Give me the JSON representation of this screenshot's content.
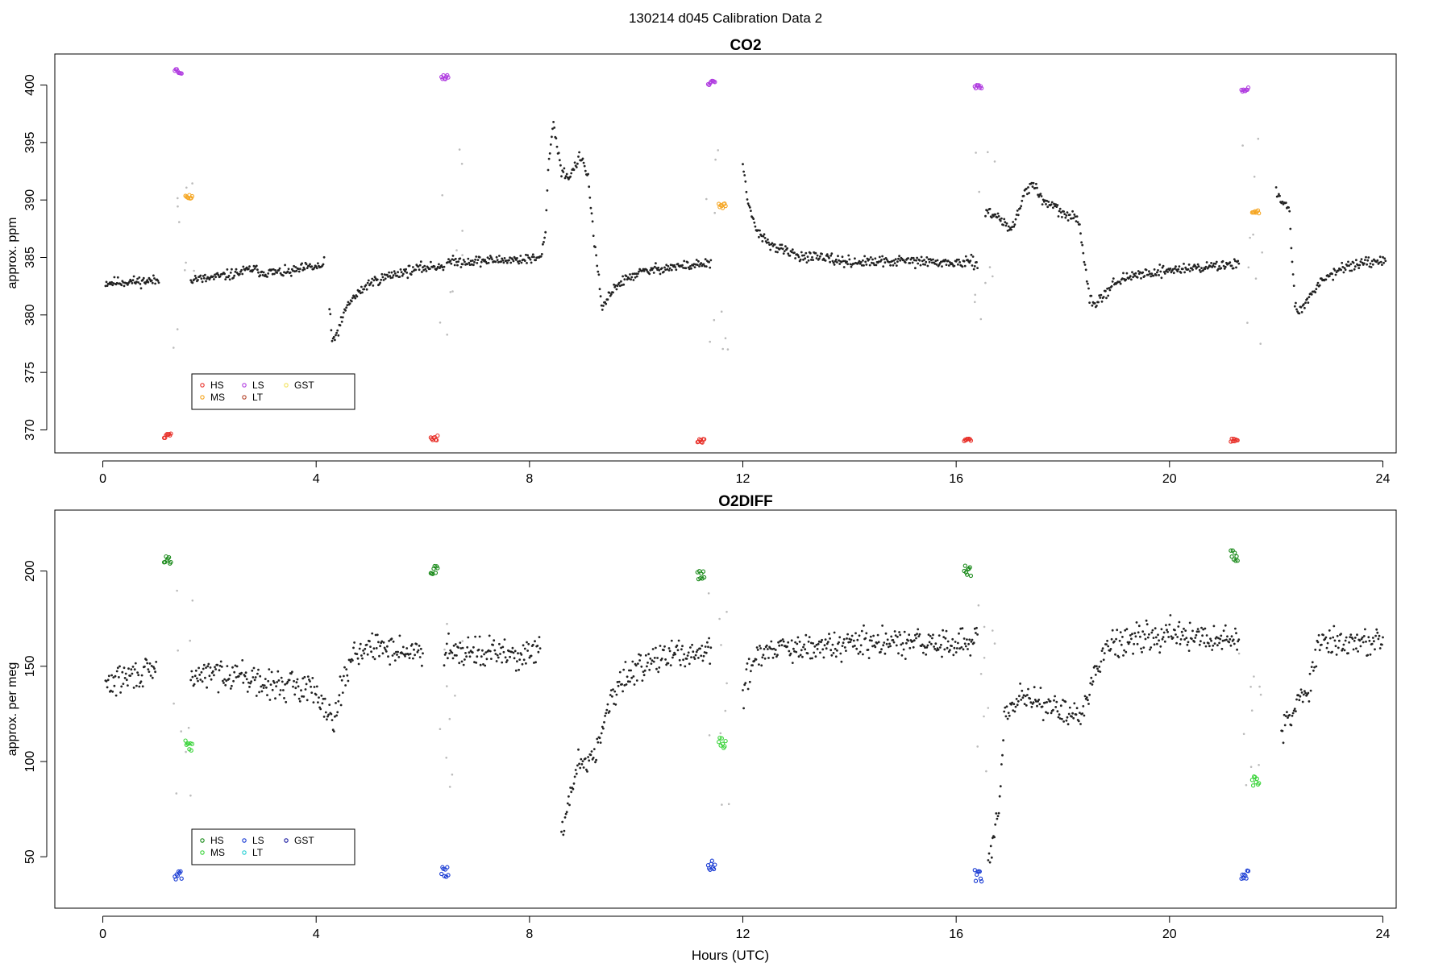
{
  "figure": {
    "main_title": "130214   d045   Calibration Data 2"
  },
  "chart_data": [
    {
      "type": "scatter",
      "title": "CO2",
      "xlabel": "",
      "ylabel": "approx. ppm",
      "xlim": [
        -0.9,
        24.25
      ],
      "ylim": [
        368.0,
        402.7
      ],
      "x_ticks": [
        "0",
        "4",
        "8",
        "12",
        "16",
        "20",
        "24"
      ],
      "y_ticks": [
        "370",
        "375",
        "380",
        "385",
        "390",
        "395",
        "400"
      ],
      "legend": {
        "placement": "bottom-left",
        "entries": [
          {
            "label": "HS",
            "color": "#e8312a"
          },
          {
            "label": "MS",
            "color": "#f5a623"
          },
          {
            "label": "LS",
            "color": "#b03ce0"
          },
          {
            "label": "LT",
            "color": "#b5472e"
          },
          {
            "label": "GST",
            "color": "#f2e25c"
          }
        ]
      },
      "calibrations": [
        {
          "cycle_start": 1.05,
          "HS": 369.5,
          "MS": 390.3,
          "LS": 401.2
        },
        {
          "cycle_start": 6.05,
          "HS": 369.3,
          "LS": 400.7
        },
        {
          "cycle_start": 11.05,
          "HS": 369.1,
          "MS": 389.5,
          "LS": 400.2
        },
        {
          "cycle_start": 16.05,
          "HS": 369.1,
          "LS": 399.8
        },
        {
          "cycle_start": 21.05,
          "HS": 369.1,
          "MS": 389.0,
          "LS": 399.6
        }
      ],
      "series": [
        {
          "segments": [
            [
              [
                0.05,
                382.8
              ],
              [
                1.05,
                383.0
              ]
            ],
            [
              [
                1.65,
                383.2
              ],
              [
                1.9,
                383.1
              ],
              [
                2.5,
                383.6
              ],
              [
                2.8,
                384.0
              ],
              [
                3.0,
                383.7
              ],
              [
                3.5,
                383.7
              ],
              [
                3.8,
                384.1
              ],
              [
                4.1,
                384.2
              ],
              [
                4.15,
                384.6
              ]
            ],
            [
              [
                4.25,
                380.5
              ],
              [
                4.3,
                377.7
              ],
              [
                4.4,
                378.5
              ],
              [
                4.6,
                381.0
              ],
              [
                5.0,
                382.8
              ],
              [
                5.5,
                383.6
              ],
              [
                6.0,
                384.1
              ],
              [
                6.4,
                384.3
              ]
            ],
            [
              [
                6.45,
                384.6
              ],
              [
                8.2,
                384.9
              ],
              [
                8.3,
                386.9
              ],
              [
                8.35,
                393.0
              ],
              [
                8.45,
                396.7
              ],
              [
                8.6,
                392.5
              ],
              [
                8.75,
                392.0
              ],
              [
                8.95,
                393.8
              ],
              [
                9.1,
                392.0
              ],
              [
                9.2,
                387.0
              ],
              [
                9.3,
                383.0
              ],
              [
                9.35,
                380.5
              ],
              [
                9.6,
                382.5
              ],
              [
                10.0,
                383.6
              ],
              [
                10.5,
                384.1
              ],
              [
                11.0,
                384.3
              ],
              [
                11.4,
                384.5
              ]
            ],
            [
              [
                12.0,
                393.0
              ],
              [
                12.1,
                389.5
              ],
              [
                12.3,
                387.0
              ],
              [
                12.6,
                385.9
              ],
              [
                13.0,
                385.2
              ],
              [
                13.5,
                384.9
              ],
              [
                14.0,
                384.6
              ],
              [
                14.5,
                384.6
              ],
              [
                15.0,
                384.7
              ],
              [
                15.5,
                384.6
              ],
              [
                16.0,
                384.5
              ],
              [
                16.4,
                384.6
              ]
            ],
            [
              [
                16.55,
                389.0
              ],
              [
                16.8,
                388.5
              ],
              [
                17.0,
                387.5
              ],
              [
                17.1,
                388.0
              ],
              [
                17.3,
                390.8
              ],
              [
                17.45,
                391.5
              ],
              [
                17.6,
                390.0
              ],
              [
                17.8,
                389.5
              ],
              [
                18.0,
                388.8
              ],
              [
                18.3,
                388.2
              ],
              [
                18.4,
                385.0
              ],
              [
                18.5,
                381.5
              ],
              [
                18.6,
                381.0
              ],
              [
                19.0,
                382.9
              ],
              [
                19.5,
                383.6
              ],
              [
                20.0,
                383.9
              ],
              [
                20.5,
                384.1
              ],
              [
                21.0,
                384.3
              ],
              [
                21.3,
                384.5
              ]
            ],
            [
              [
                22.0,
                391.0
              ],
              [
                22.1,
                390.0
              ],
              [
                22.25,
                389.0
              ],
              [
                22.3,
                384.5
              ],
              [
                22.35,
                381.0
              ],
              [
                22.45,
                380.2
              ],
              [
                22.8,
                382.8
              ],
              [
                23.2,
                384.1
              ],
              [
                23.6,
                384.4
              ],
              [
                24.05,
                384.6
              ]
            ]
          ]
        }
      ]
    },
    {
      "type": "scatter",
      "title": "O2DIFF",
      "xlabel": "Hours (UTC)",
      "ylabel": "approx. per meg",
      "xlim": [
        -0.9,
        24.25
      ],
      "ylim": [
        23.0,
        232.0
      ],
      "x_ticks": [
        "0",
        "4",
        "8",
        "12",
        "16",
        "20",
        "24"
      ],
      "y_ticks": [
        "50",
        "100",
        "150",
        "200"
      ],
      "legend": {
        "placement": "bottom-left",
        "entries": [
          {
            "label": "HS",
            "color": "#1a8a1a"
          },
          {
            "label": "MS",
            "color": "#3cd43c"
          },
          {
            "label": "LS",
            "color": "#1a3cd4"
          },
          {
            "label": "LT",
            "color": "#28cfd4"
          },
          {
            "label": "GST",
            "color": "#1a1aa0"
          }
        ]
      },
      "calibrations": [
        {
          "cycle_start": 1.05,
          "HS": 205,
          "MS": 108,
          "LS": 40
        },
        {
          "cycle_start": 6.05,
          "HS": 200,
          "LS": 42
        },
        {
          "cycle_start": 11.05,
          "HS": 198,
          "MS": 110,
          "LS": 45
        },
        {
          "cycle_start": 16.05,
          "HS": 200,
          "LS": 40
        },
        {
          "cycle_start": 21.05,
          "HS": 208,
          "MS": 90,
          "LS": 40
        }
      ],
      "series": [
        {
          "segments": [
            [
              [
                0.05,
                140
              ],
              [
                0.5,
                145
              ],
              [
                1.0,
                147
              ]
            ],
            [
              [
                1.65,
                145
              ],
              [
                2.5,
                147
              ],
              [
                3.0,
                140
              ],
              [
                3.5,
                140
              ],
              [
                4.0,
                138
              ],
              [
                4.3,
                122
              ],
              [
                4.5,
                140
              ],
              [
                4.7,
                158
              ],
              [
                5.3,
                160
              ],
              [
                6.0,
                156
              ]
            ],
            [
              [
                6.4,
                160
              ],
              [
                7.0,
                158
              ],
              [
                8.0,
                155
              ],
              [
                8.2,
                160
              ]
            ],
            [
              [
                8.6,
                60
              ],
              [
                8.8,
                85
              ],
              [
                8.9,
                100
              ],
              [
                9.1,
                100
              ],
              [
                9.3,
                110
              ],
              [
                9.5,
                130
              ],
              [
                9.7,
                140
              ],
              [
                10.0,
                150
              ],
              [
                10.5,
                155
              ],
              [
                11.0,
                157
              ],
              [
                11.4,
                158
              ]
            ],
            [
              [
                12.0,
                135
              ],
              [
                12.2,
                155
              ],
              [
                12.5,
                160
              ],
              [
                13.0,
                158
              ],
              [
                14.0,
                162
              ],
              [
                15.0,
                162
              ],
              [
                16.0,
                162
              ],
              [
                16.4,
                163
              ]
            ],
            [
              [
                16.6,
                45
              ],
              [
                16.8,
                75
              ],
              [
                16.9,
                120
              ],
              [
                17.2,
                135
              ],
              [
                17.6,
                132
              ],
              [
                18.0,
                125
              ],
              [
                18.3,
                123
              ],
              [
                18.6,
                145
              ],
              [
                18.8,
                162
              ],
              [
                19.5,
                166
              ],
              [
                20.0,
                168
              ],
              [
                20.5,
                164
              ],
              [
                21.0,
                165
              ],
              [
                21.3,
                164
              ]
            ],
            [
              [
                22.1,
                115
              ],
              [
                22.3,
                125
              ],
              [
                22.6,
                140
              ],
              [
                22.8,
                162
              ],
              [
                23.2,
                163
              ],
              [
                23.6,
                162
              ],
              [
                24.0,
                163
              ]
            ]
          ]
        }
      ]
    }
  ]
}
